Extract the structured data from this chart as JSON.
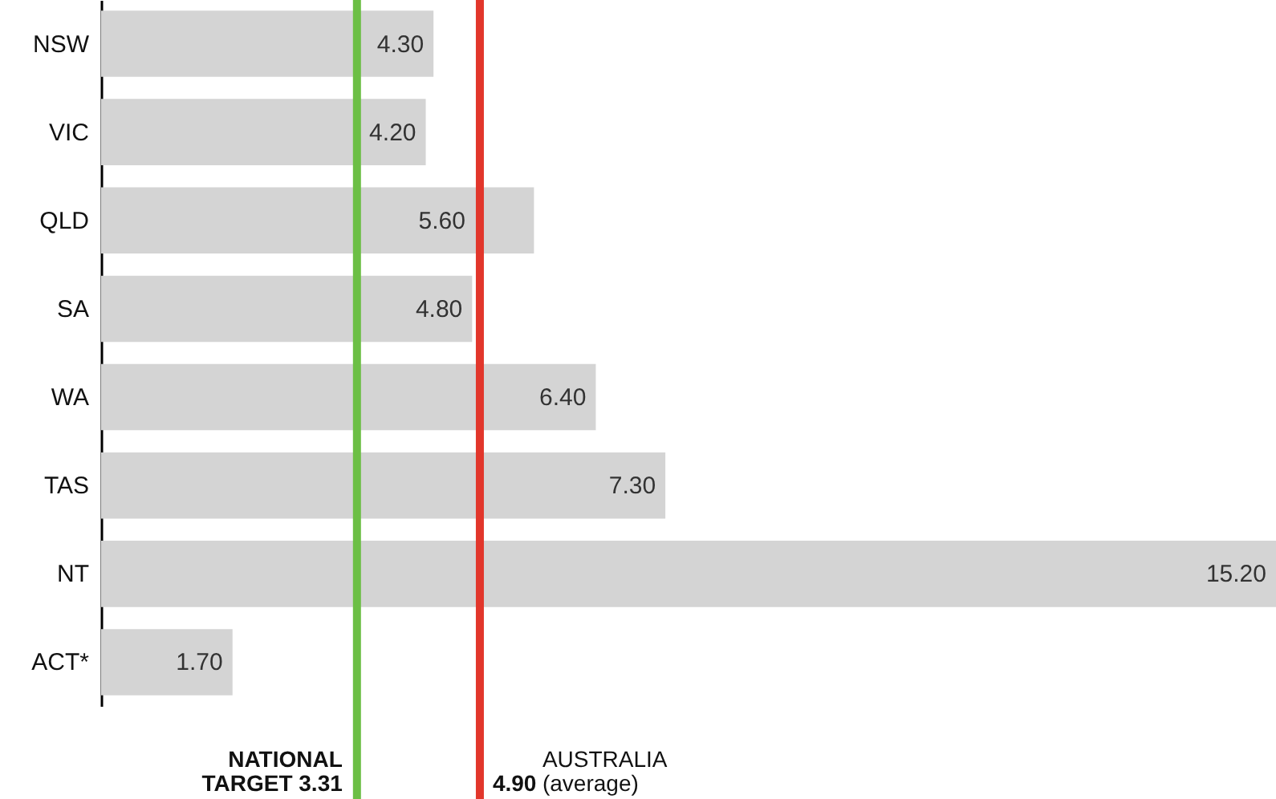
{
  "chart_data": {
    "type": "bar",
    "orientation": "horizontal",
    "categories": [
      "NSW",
      "VIC",
      "QLD",
      "SA",
      "WA",
      "TAS",
      "NT",
      "ACT*"
    ],
    "values": [
      4.3,
      4.2,
      5.6,
      4.8,
      6.4,
      7.3,
      15.2,
      1.7
    ],
    "value_labels": [
      "4.30",
      "4.20",
      "5.60",
      "4.80",
      "6.40",
      "7.30",
      "15.20",
      "1.70"
    ],
    "color": "#d4d4d4",
    "xlim": [
      0,
      15.2
    ],
    "tick_labels": "y",
    "ref_lines": [
      {
        "axis": "x",
        "value": 3.31,
        "label": "NATIONAL TARGET 3.31",
        "color": "#6cbf45"
      },
      {
        "axis": "x",
        "value": 4.9,
        "label": "4.90 AUSTRALIA (average)",
        "color": "#e2362b"
      }
    ]
  }
}
